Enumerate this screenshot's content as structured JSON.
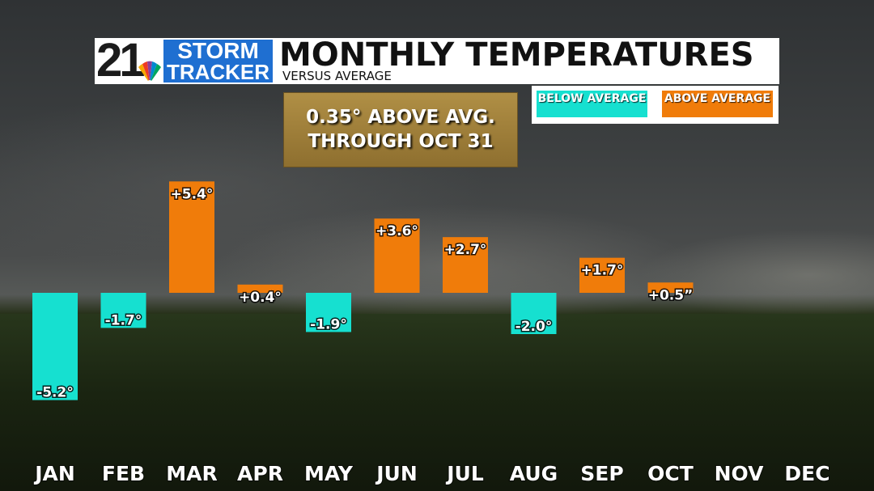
{
  "branding": {
    "station_number": "21",
    "line1": "STORM",
    "line2": "TRACKER"
  },
  "header": {
    "title": "MONTHLY TEMPERATURES",
    "subtitle": "VERSUS AVERAGE"
  },
  "note": {
    "line1": "0.35° ABOVE AVG.",
    "line2": "THROUGH OCT 31"
  },
  "legend": {
    "below": "BELOW AVERAGE",
    "above": "ABOVE AVERAGE"
  },
  "colors": {
    "below": "#16e0d0",
    "above": "#f07c0a",
    "header_blue": "#1f6fd1"
  },
  "chart_data": {
    "type": "bar",
    "categories": [
      "JAN",
      "FEB",
      "MAR",
      "APR",
      "MAY",
      "JUN",
      "JUL",
      "AUG",
      "SEP",
      "OCT",
      "NOV",
      "DEC"
    ],
    "values": [
      -5.2,
      -1.7,
      5.4,
      0.4,
      -1.9,
      3.6,
      2.7,
      -2.0,
      1.7,
      0.5,
      null,
      null
    ],
    "data_labels": [
      "-5.2°",
      "-1.7°",
      "+5.4°",
      "+0.4°",
      "-1.9°",
      "+3.6°",
      "+2.7°",
      "-2.0°",
      "+1.7°",
      "+0.5”",
      "",
      ""
    ],
    "title": "MONTHLY TEMPERATURES",
    "subtitle": "VERSUS AVERAGE",
    "xlabel": "",
    "ylabel": "",
    "ylim": [
      -5.2,
      5.4
    ],
    "baseline": 0,
    "grid": false,
    "legend": {
      "placement": "top-right",
      "entries": [
        "BELOW AVERAGE",
        "ABOVE AVERAGE"
      ]
    }
  }
}
